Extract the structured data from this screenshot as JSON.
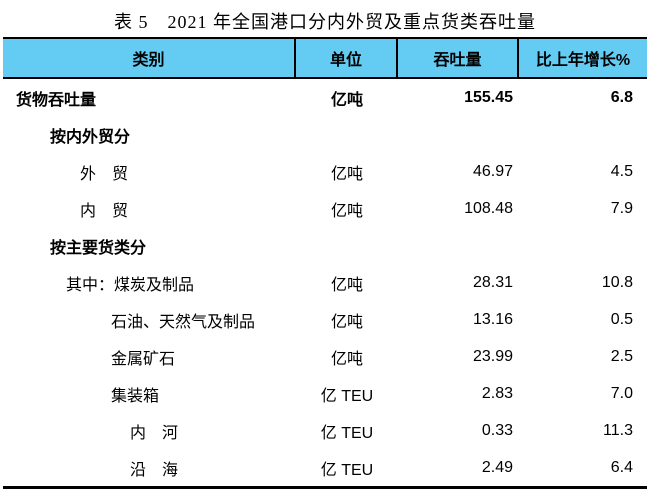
{
  "page_title": "表 5　2021 年全国港口分内外贸及重点货类吞吐量",
  "table": {
    "columns": [
      {
        "key": "label",
        "header": "类别"
      },
      {
        "key": "unit",
        "header": "单位"
      },
      {
        "key": "value",
        "header": "吞吐量"
      },
      {
        "key": "growth",
        "header": "比上年增长%"
      }
    ],
    "rows": [
      {
        "label": "货物吞吐量",
        "unit": "亿吨",
        "value": "155.45",
        "growth": "6.8",
        "bold": true,
        "indent": 0
      },
      {
        "label": "按内外贸分",
        "unit": "",
        "value": "",
        "growth": "",
        "bold": true,
        "indent": 1
      },
      {
        "label": "外　贸",
        "unit": "亿吨",
        "value": "46.97",
        "growth": "4.5",
        "bold": false,
        "indent": 2
      },
      {
        "label": "内　贸",
        "unit": "亿吨",
        "value": "108.48",
        "growth": "7.9",
        "bold": false,
        "indent": 2
      },
      {
        "label": "按主要货类分",
        "unit": "",
        "value": "",
        "growth": "",
        "bold": true,
        "indent": 1
      },
      {
        "label": "其中：煤炭及制品",
        "unit": "亿吨",
        "value": "28.31",
        "growth": "10.8",
        "bold": false,
        "indent": 3
      },
      {
        "label": "石油、天然气及制品",
        "unit": "亿吨",
        "value": "13.16",
        "growth": "0.5",
        "bold": false,
        "indent": 4
      },
      {
        "label": "金属矿石",
        "unit": "亿吨",
        "value": "23.99",
        "growth": "2.5",
        "bold": false,
        "indent": 4
      },
      {
        "label": "集装箱",
        "unit": "亿 TEU",
        "value": "2.83",
        "growth": "7.0",
        "bold": false,
        "indent": 4
      },
      {
        "label": "内　河",
        "unit": "亿 TEU",
        "value": "0.33",
        "growth": "11.3",
        "bold": false,
        "indent": 5
      },
      {
        "label": "沿　海",
        "unit": "亿 TEU",
        "value": "2.49",
        "growth": "6.4",
        "bold": false,
        "indent": 5
      }
    ]
  },
  "colors": {
    "header_bg": "#64CBF2",
    "border": "#000000",
    "text": "#000000",
    "background": "#FFFFFF"
  },
  "chart_data": {
    "type": "table",
    "title": "表 5　2021 年全国港口分内外贸及重点货类吞吐量",
    "columns": [
      "类别",
      "单位",
      "吞吐量",
      "比上年增长%"
    ],
    "rows": [
      [
        "货物吞吐量",
        "亿吨",
        155.45,
        6.8
      ],
      [
        "按内外贸分",
        "",
        null,
        null
      ],
      [
        "外　贸",
        "亿吨",
        46.97,
        4.5
      ],
      [
        "内　贸",
        "亿吨",
        108.48,
        7.9
      ],
      [
        "按主要货类分",
        "",
        null,
        null
      ],
      [
        "其中：煤炭及制品",
        "亿吨",
        28.31,
        10.8
      ],
      [
        "石油、天然气及制品",
        "亿吨",
        13.16,
        0.5
      ],
      [
        "金属矿石",
        "亿吨",
        23.99,
        2.5
      ],
      [
        "集装箱",
        "亿 TEU",
        2.83,
        7.0
      ],
      [
        "内　河",
        "亿 TEU",
        0.33,
        11.3
      ],
      [
        "沿　海",
        "亿 TEU",
        2.49,
        6.4
      ]
    ]
  }
}
